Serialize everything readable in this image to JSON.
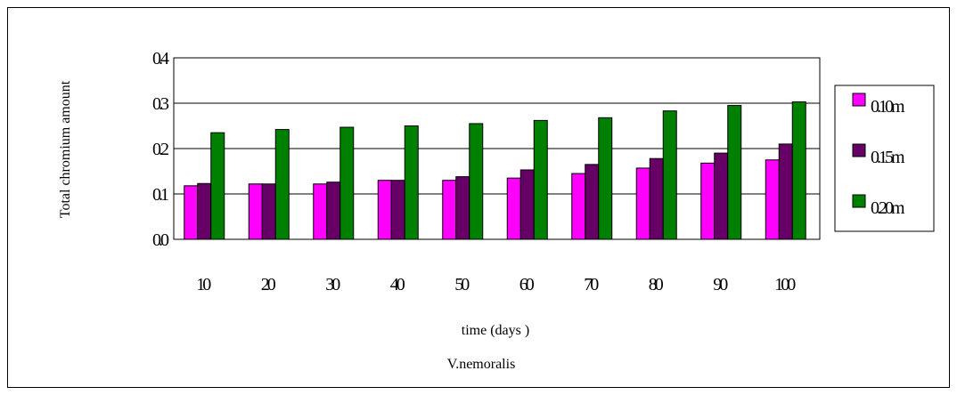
{
  "chart_data": {
    "type": "bar",
    "title": "V.nemoralis",
    "xlabel": "time  (days )",
    "ylabel": "Total chromium amount",
    "categories": [
      "10",
      "20",
      "30",
      "40",
      "50",
      "60",
      "70",
      "80",
      "90",
      "100"
    ],
    "ytick_labels": [
      "0.0",
      "0.1",
      "0.2",
      "0.3",
      "0.4"
    ],
    "ylim": [
      0,
      0.4
    ],
    "grid": true,
    "legend_position": "right",
    "series": [
      {
        "name": "0.10m",
        "color": "#ff00ff",
        "values": [
          0.118,
          0.122,
          0.122,
          0.13,
          0.13,
          0.135,
          0.145,
          0.157,
          0.168,
          0.175
        ]
      },
      {
        "name": "0.15m",
        "color": "#660066",
        "values": [
          0.123,
          0.122,
          0.126,
          0.13,
          0.138,
          0.153,
          0.165,
          0.178,
          0.19,
          0.21
        ]
      },
      {
        "name": "0.20m",
        "color": "#008000",
        "values": [
          0.235,
          0.242,
          0.247,
          0.25,
          0.255,
          0.262,
          0.268,
          0.283,
          0.295,
          0.303
        ]
      }
    ]
  }
}
